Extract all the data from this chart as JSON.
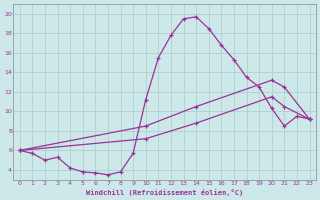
{
  "xlabel": "Windchill (Refroidissement éolien,°C)",
  "bg_color": "#cce8e8",
  "line_color": "#993399",
  "grid_color": "#aacccc",
  "xlim": [
    -0.5,
    23.5
  ],
  "ylim": [
    3.0,
    21.0
  ],
  "xticks": [
    0,
    1,
    2,
    3,
    4,
    5,
    6,
    7,
    8,
    9,
    10,
    11,
    12,
    13,
    14,
    15,
    16,
    17,
    18,
    19,
    20,
    21,
    22,
    23
  ],
  "yticks": [
    4,
    6,
    8,
    10,
    12,
    14,
    16,
    18,
    20
  ],
  "curve1_x": [
    0,
    1,
    2,
    3,
    4,
    5,
    6,
    7,
    8,
    9,
    10,
    11,
    12,
    13,
    14,
    15,
    16,
    17,
    18,
    19,
    20,
    21,
    22,
    23
  ],
  "curve1_y": [
    6.0,
    5.7,
    5.0,
    5.3,
    4.2,
    3.8,
    3.7,
    3.5,
    3.8,
    5.7,
    11.2,
    15.5,
    17.8,
    19.5,
    19.7,
    18.5,
    16.8,
    15.3,
    13.5,
    12.5,
    10.3,
    8.5,
    9.5,
    9.2
  ],
  "curve2_x": [
    0,
    10,
    14,
    20,
    21,
    23
  ],
  "curve2_y": [
    6.0,
    8.5,
    10.5,
    13.2,
    12.5,
    9.2
  ],
  "curve3_x": [
    0,
    10,
    14,
    20,
    21,
    23
  ],
  "curve3_y": [
    6.0,
    7.2,
    8.8,
    11.5,
    10.5,
    9.2
  ],
  "marker": "+"
}
